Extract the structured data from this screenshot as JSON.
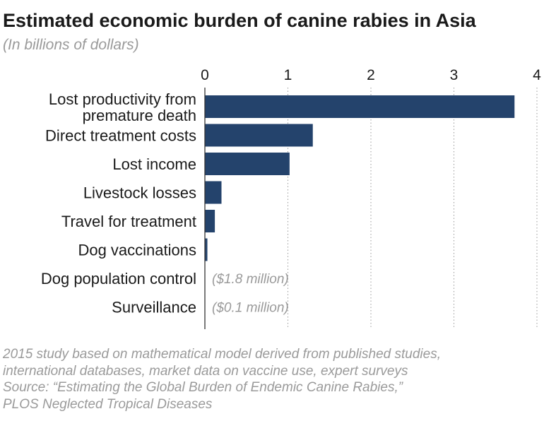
{
  "chart_data": {
    "type": "bar",
    "orientation": "horizontal",
    "title": "Estimated economic burden of canine rabies in Asia",
    "subtitle": "(In billions of dollars)",
    "xlim": [
      0,
      4
    ],
    "xticks": [
      "0",
      "1",
      "2",
      "3",
      "4"
    ],
    "categories": [
      [
        "Lost productivity from",
        "premature death"
      ],
      [
        "Direct treatment costs"
      ],
      [
        "Lost income"
      ],
      [
        "Livestock losses"
      ],
      [
        "Travel for treatment"
      ],
      [
        "Dog vaccinations"
      ],
      [
        "Dog population control"
      ],
      [
        "Surveillance"
      ]
    ],
    "values": [
      3.73,
      1.3,
      1.02,
      0.2,
      0.12,
      0.03,
      0.0018,
      0.0001
    ],
    "value_notes": [
      "",
      "",
      "",
      "",
      "",
      "",
      "($1.8 million)",
      "($0.1 million)"
    ],
    "bar_color": "#24436c",
    "grid": "vertical dotted"
  },
  "footer": {
    "notes": [
      "2015 study based on mathematical model derived from published studies,",
      "international databases, market data on vaccine use, expert surveys"
    ],
    "source": [
      "Source: “Estimating the Global Burden of Endemic Canine Rabies,”",
      "PLOS Neglected Tropical Diseases"
    ]
  }
}
